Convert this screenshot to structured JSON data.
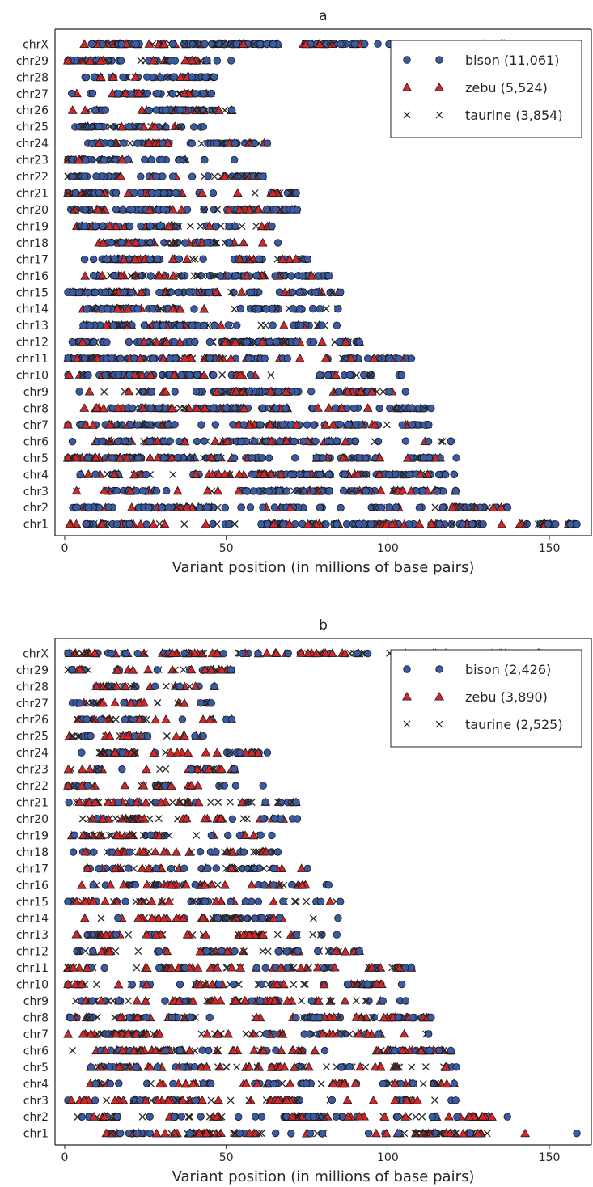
{
  "chart_data": [
    {
      "panel": "a",
      "type": "scatter",
      "title": "a",
      "xlabel": "Variant position (in millions of base pairs)",
      "ylabel": "",
      "xlim": [
        -3,
        163
      ],
      "xticks": [
        0,
        50,
        100,
        150
      ],
      "categories": [
        "chr1",
        "chr2",
        "chr3",
        "chr4",
        "chr5",
        "chr6",
        "chr7",
        "chr8",
        "chr9",
        "chr10",
        "chr11",
        "chr12",
        "chr13",
        "chr14",
        "chr15",
        "chr16",
        "chr17",
        "chr18",
        "chr19",
        "chr20",
        "chr21",
        "chr22",
        "chr23",
        "chr24",
        "chr25",
        "chr26",
        "chr27",
        "chr28",
        "chr29",
        "chrX"
      ],
      "chrom_lengths_mb": [
        158.5,
        137.0,
        121.0,
        120.5,
        121.2,
        119.5,
        112.6,
        113.4,
        105.5,
        104.3,
        107.3,
        91.2,
        84.2,
        84.6,
        85.3,
        81.7,
        75.2,
        66.0,
        64.1,
        72.0,
        71.6,
        61.4,
        52.5,
        62.7,
        42.9,
        51.7,
        45.4,
        46.3,
        51.5,
        148.8
      ],
      "series": [
        {
          "name": "bison (11,061)",
          "marker": "circle",
          "color": "#3a5ba6",
          "count": 11061
        },
        {
          "name": "zebu (5,524)",
          "marker": "triangle",
          "color": "#d62728",
          "count": 5524
        },
        {
          "name": "taurine (3,854)",
          "marker": "x",
          "color": "#262626",
          "count": 3854
        }
      ],
      "legend_position": "top-right",
      "grid": false
    },
    {
      "panel": "b",
      "type": "scatter",
      "title": "b",
      "xlabel": "Variant position (in millions of base pairs)",
      "ylabel": "",
      "xlim": [
        -3,
        163
      ],
      "xticks": [
        0,
        50,
        100,
        150
      ],
      "categories": [
        "chr1",
        "chr2",
        "chr3",
        "chr4",
        "chr5",
        "chr6",
        "chr7",
        "chr8",
        "chr9",
        "chr10",
        "chr11",
        "chr12",
        "chr13",
        "chr14",
        "chr15",
        "chr16",
        "chr17",
        "chr18",
        "chr19",
        "chr20",
        "chr21",
        "chr22",
        "chr23",
        "chr24",
        "chr25",
        "chr26",
        "chr27",
        "chr28",
        "chr29",
        "chrX"
      ],
      "chrom_lengths_mb": [
        158.5,
        137.0,
        121.0,
        120.5,
        121.2,
        119.5,
        112.6,
        113.4,
        105.5,
        104.3,
        107.3,
        91.2,
        84.2,
        84.6,
        85.3,
        81.7,
        75.2,
        66.0,
        64.1,
        72.0,
        71.6,
        61.4,
        52.5,
        62.7,
        42.9,
        51.7,
        45.4,
        46.3,
        51.5,
        148.8
      ],
      "series": [
        {
          "name": "bison (2,426)",
          "marker": "circle",
          "color": "#3a5ba6",
          "count": 2426
        },
        {
          "name": "zebu (3,890)",
          "marker": "triangle",
          "color": "#d62728",
          "count": 3890
        },
        {
          "name": "taurine (2,525)",
          "marker": "x",
          "color": "#262626",
          "count": 2525
        }
      ],
      "legend_position": "top-right",
      "grid": false
    }
  ]
}
